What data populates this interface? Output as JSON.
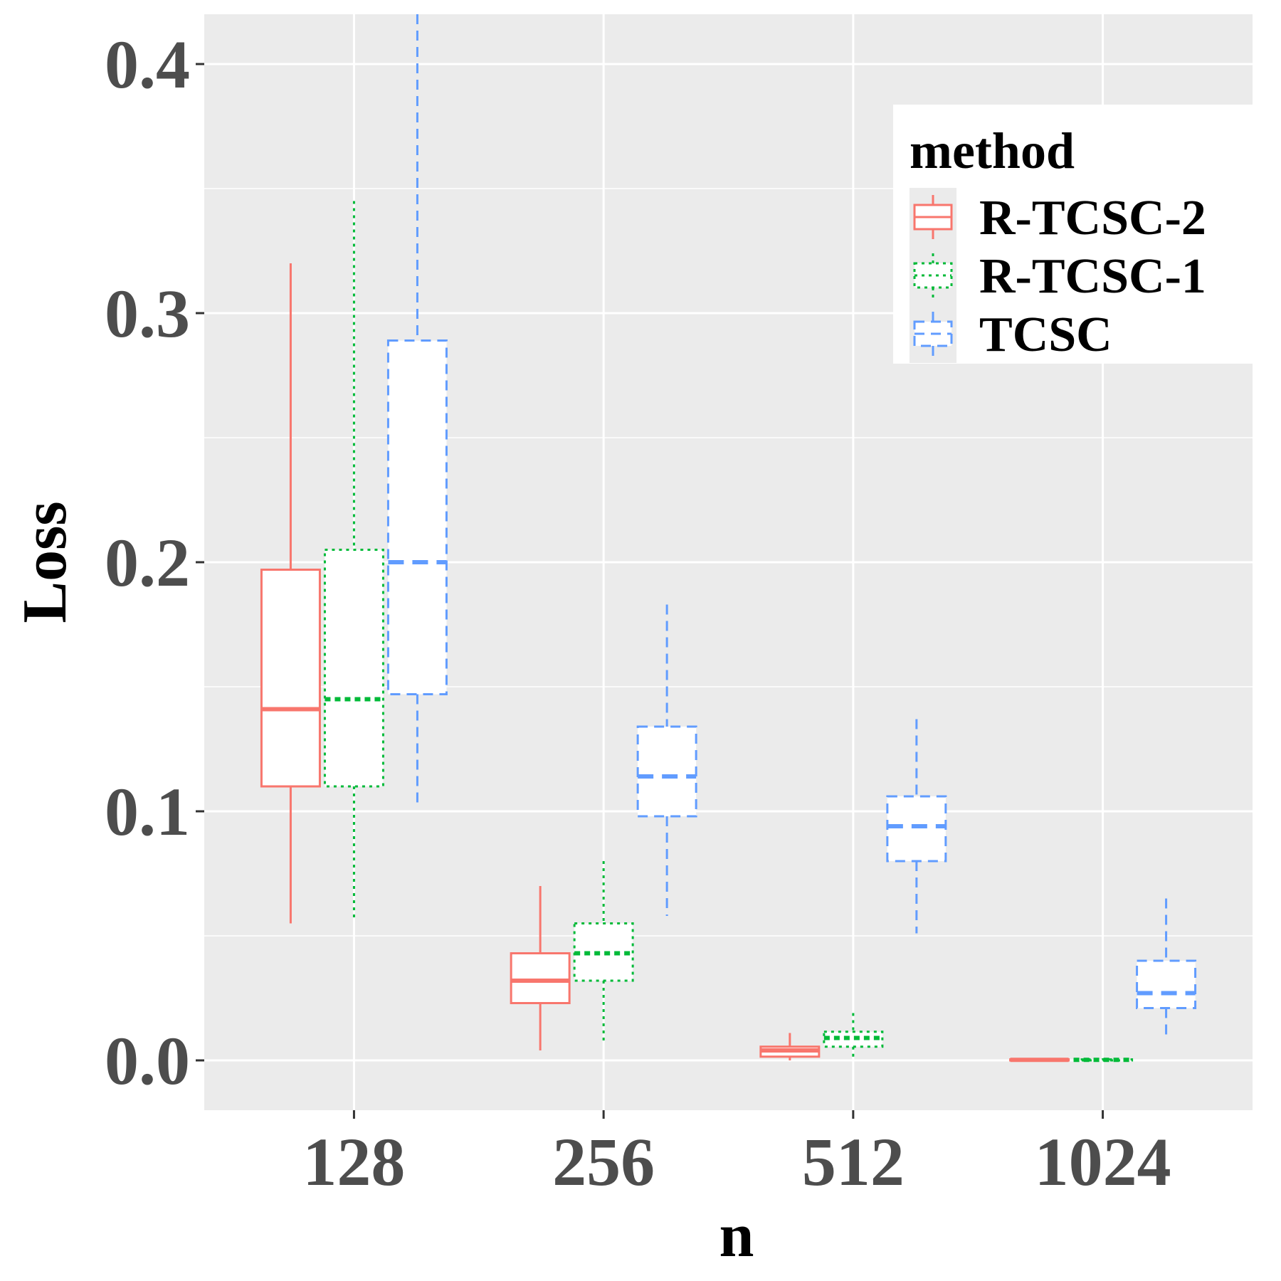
{
  "chart_data": {
    "type": "boxplot",
    "xlabel": "n",
    "ylabel": "Loss",
    "ylim": [
      -0.02,
      0.42
    ],
    "yticks": [
      "0.0",
      "0.1",
      "0.2",
      "0.3",
      "0.4"
    ],
    "categories": [
      "128",
      "256",
      "512",
      "1024"
    ],
    "legend": {
      "title": "method",
      "position": "top-right"
    },
    "grid": true,
    "series": [
      {
        "name": "R-TCSC-2",
        "color": "#F8766D",
        "line": "solid",
        "boxes": [
          {
            "x": "128",
            "min": 0.055,
            "q1": 0.11,
            "median": 0.141,
            "q3": 0.197,
            "max": 0.32
          },
          {
            "x": "256",
            "min": 0.004,
            "q1": 0.023,
            "median": 0.032,
            "q3": 0.043,
            "max": 0.07
          },
          {
            "x": "512",
            "min": 0.0,
            "q1": 0.0015,
            "median": 0.004,
            "q3": 0.0055,
            "max": 0.011
          },
          {
            "x": "1024",
            "min": 0.0,
            "q1": 0.0,
            "median": 0.0002,
            "q3": 0.0004,
            "max": 0.0008
          }
        ]
      },
      {
        "name": "R-TCSC-1",
        "color": "#00BA38",
        "line": "dotted",
        "boxes": [
          {
            "x": "128",
            "min": 0.057,
            "q1": 0.11,
            "median": 0.145,
            "q3": 0.205,
            "max": 0.345
          },
          {
            "x": "256",
            "min": 0.008,
            "q1": 0.032,
            "median": 0.043,
            "q3": 0.055,
            "max": 0.08
          },
          {
            "x": "512",
            "min": 0.0005,
            "q1": 0.0055,
            "median": 0.009,
            "q3": 0.0115,
            "max": 0.019
          },
          {
            "x": "1024",
            "min": 0.0,
            "q1": 0.0,
            "median": 0.0002,
            "q3": 0.0004,
            "max": 0.0008
          }
        ]
      },
      {
        "name": "TCSC",
        "color": "#619CFF",
        "line": "dashed",
        "boxes": [
          {
            "x": "128",
            "min": 0.102,
            "q1": 0.147,
            "median": 0.2,
            "q3": 0.289,
            "max": 0.42
          },
          {
            "x": "256",
            "min": 0.058,
            "q1": 0.098,
            "median": 0.114,
            "q3": 0.134,
            "max": 0.183
          },
          {
            "x": "512",
            "min": 0.051,
            "q1": 0.08,
            "median": 0.094,
            "q3": 0.106,
            "max": 0.137
          },
          {
            "x": "1024",
            "min": 0.01,
            "q1": 0.021,
            "median": 0.027,
            "q3": 0.04,
            "max": 0.065
          }
        ]
      }
    ]
  }
}
